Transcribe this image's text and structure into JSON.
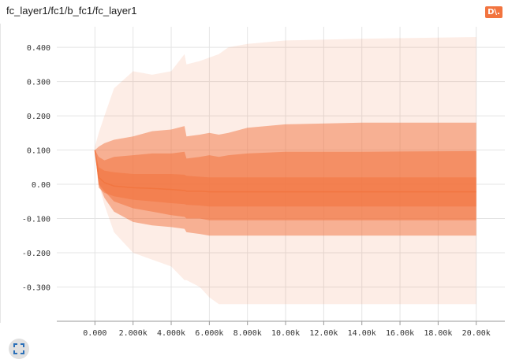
{
  "card": {
    "title": "fc_layer1/fc1/b_fc1/fc_layer1",
    "badge_label": "D\\."
  },
  "chart_data": {
    "type": "area",
    "x_ticks": [
      0,
      2000,
      4000,
      6000,
      8000,
      10000,
      12000,
      14000,
      16000,
      18000,
      20000
    ],
    "x_tick_labels": [
      "0.000",
      "2.000k",
      "4.000k",
      "6.000k",
      "8.000k",
      "10.00k",
      "12.00k",
      "14.00k",
      "16.00k",
      "18.00k",
      "20.00k"
    ],
    "y_ticks": [
      0.4,
      0.3,
      0.2,
      0.1,
      0,
      -0.1,
      -0.2,
      -0.3
    ],
    "y_tick_labels": [
      "0.400",
      "0.300",
      "0.200",
      "0.100",
      "0.00",
      "-0.100",
      "-0.200",
      "-0.300"
    ],
    "xlim": [
      -2000,
      21500
    ],
    "ylim": [
      -0.4,
      0.46
    ],
    "grid": true,
    "color": "#f2743f",
    "x": [
      0,
      200,
      500,
      1000,
      2000,
      3000,
      4000,
      4700,
      4800,
      5500,
      6000,
      6500,
      7000,
      8000,
      10000,
      14000,
      20000
    ],
    "bands": [
      {
        "name": "outer",
        "upper": [
          0.11,
          0.15,
          0.2,
          0.28,
          0.33,
          0.32,
          0.33,
          0.38,
          0.35,
          0.36,
          0.37,
          0.38,
          0.4,
          0.41,
          0.42,
          0.425,
          0.43
        ],
        "lower": [
          0.1,
          0.0,
          -0.06,
          -0.14,
          -0.2,
          -0.22,
          -0.24,
          -0.28,
          -0.28,
          -0.3,
          -0.33,
          -0.35,
          -0.35,
          -0.35,
          -0.35,
          -0.35,
          -0.35
        ]
      },
      {
        "name": "middle",
        "upper": [
          0.1,
          0.11,
          0.12,
          0.13,
          0.14,
          0.155,
          0.16,
          0.17,
          0.14,
          0.145,
          0.15,
          0.145,
          0.15,
          0.165,
          0.175,
          0.18,
          0.18
        ],
        "lower": [
          0.1,
          0.0,
          -0.04,
          -0.08,
          -0.11,
          -0.12,
          -0.125,
          -0.13,
          -0.14,
          -0.145,
          -0.15,
          -0.15,
          -0.15,
          -0.15,
          -0.15,
          -0.15,
          -0.15
        ]
      },
      {
        "name": "inner",
        "upper": [
          0.1,
          0.08,
          0.07,
          0.08,
          0.085,
          0.09,
          0.09,
          0.095,
          0.075,
          0.08,
          0.085,
          0.08,
          0.085,
          0.09,
          0.095,
          0.095,
          0.097
        ],
        "lower": [
          0.1,
          0.0,
          -0.02,
          -0.05,
          -0.07,
          -0.08,
          -0.09,
          -0.095,
          -0.1,
          -0.1,
          -0.105,
          -0.105,
          -0.105,
          -0.105,
          -0.105,
          -0.105,
          -0.105
        ]
      },
      {
        "name": "core",
        "upper": [
          0.1,
          0.05,
          0.04,
          0.035,
          0.03,
          0.03,
          0.03,
          0.028,
          0.025,
          0.022,
          0.02,
          0.02,
          0.02,
          0.02,
          0.02,
          0.02,
          0.02
        ],
        "lower": [
          0.1,
          -0.01,
          -0.025,
          -0.035,
          -0.045,
          -0.05,
          -0.055,
          -0.058,
          -0.06,
          -0.062,
          -0.065,
          -0.065,
          -0.065,
          -0.065,
          -0.065,
          -0.065,
          -0.065
        ]
      }
    ],
    "median": [
      0.1,
      0.02,
      0.005,
      -0.005,
      -0.01,
      -0.012,
      -0.015,
      -0.018,
      -0.02,
      -0.02,
      -0.022,
      -0.022,
      -0.022,
      -0.022,
      -0.022,
      -0.022,
      -0.022
    ]
  },
  "controls": {
    "expand_icon": "expand-icon"
  }
}
